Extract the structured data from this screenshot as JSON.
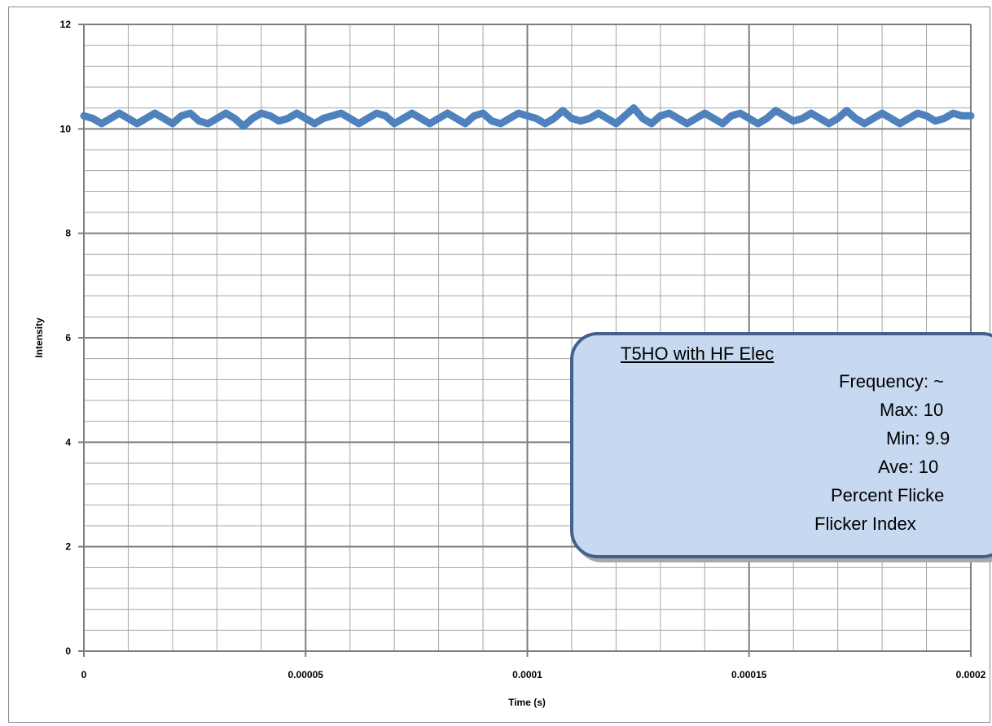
{
  "chart_data": {
    "type": "line",
    "title": "",
    "xlabel": "Time (s)",
    "ylabel": "Intensity",
    "xlim": [
      0,
      0.0002
    ],
    "ylim": [
      0,
      12
    ],
    "x_major_ticks": [
      0,
      5e-05,
      0.0001,
      0.00015,
      0.0002
    ],
    "x_tick_labels": [
      "0",
      "0.00005",
      "0.0001",
      "0.00015",
      "0.0002"
    ],
    "y_major_ticks": [
      0,
      2,
      4,
      6,
      8,
      10,
      12
    ],
    "y_tick_labels": [
      "0",
      "2",
      "4",
      "6",
      "8",
      "10",
      "12"
    ],
    "x_minor_step": 1e-05,
    "y_minor_step": 0.4,
    "grid": true,
    "legend": "none",
    "series": [
      {
        "color": "#4f81bd",
        "x_start": 0,
        "x_end": 0.0002,
        "values": [
          10.25,
          10.2,
          10.1,
          10.2,
          10.3,
          10.2,
          10.1,
          10.2,
          10.3,
          10.2,
          10.1,
          10.25,
          10.3,
          10.15,
          10.1,
          10.2,
          10.3,
          10.2,
          10.05,
          10.2,
          10.3,
          10.25,
          10.15,
          10.2,
          10.3,
          10.2,
          10.1,
          10.2,
          10.25,
          10.3,
          10.2,
          10.1,
          10.2,
          10.3,
          10.25,
          10.1,
          10.2,
          10.3,
          10.2,
          10.1,
          10.2,
          10.3,
          10.2,
          10.1,
          10.25,
          10.3,
          10.15,
          10.1,
          10.2,
          10.3,
          10.25,
          10.2,
          10.1,
          10.2,
          10.35,
          10.2,
          10.15,
          10.2,
          10.3,
          10.2,
          10.1,
          10.25,
          10.4,
          10.2,
          10.1,
          10.25,
          10.3,
          10.2,
          10.1,
          10.2,
          10.3,
          10.2,
          10.1,
          10.25,
          10.3,
          10.2,
          10.1,
          10.2,
          10.35,
          10.25,
          10.15,
          10.2,
          10.3,
          10.2,
          10.1,
          10.2,
          10.35,
          10.2,
          10.1,
          10.2,
          10.3,
          10.2,
          10.1,
          10.2,
          10.3,
          10.25,
          10.15,
          10.2,
          10.3,
          10.25,
          10.25
        ]
      }
    ]
  },
  "info_box": {
    "title": "T5HO with HF Elec",
    "frequency": "Frequency: ~",
    "max": "Max: 10",
    "min": "Min: 9.9",
    "ave": "Ave: 10",
    "percent_flicker": "Percent Flicke",
    "flicker_index": "Flicker Index"
  }
}
